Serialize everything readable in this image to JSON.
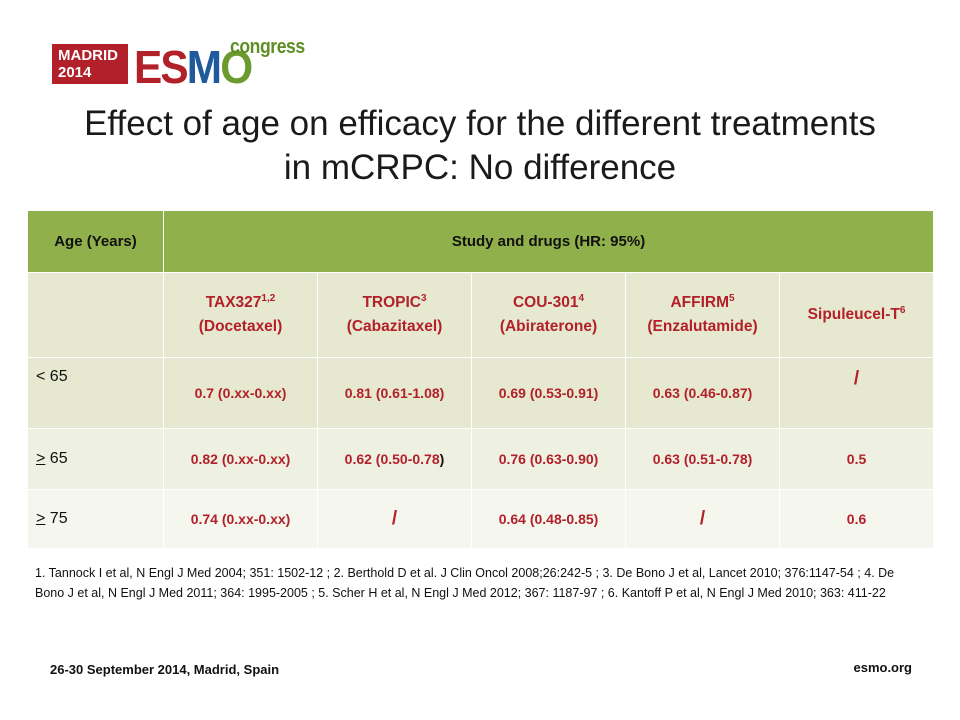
{
  "logo": {
    "city_line1": "MADRID",
    "city_line2": "2014",
    "brand_e": "E",
    "brand_s": "S",
    "brand_m": "M",
    "brand_o": "O",
    "congress": "congress"
  },
  "title": {
    "line1": "Effect of age on efficacy for the different treatments",
    "line2": "in mCRPC: No difference"
  },
  "table": {
    "header_age": "Age (Years)",
    "header_study": "Study and drugs (HR: 95%)",
    "drugs": [
      {
        "name": "TAX327",
        "sup": "1,2",
        "drug": "(Docetaxel)"
      },
      {
        "name": "TROPIC",
        "sup": "3",
        "drug": "(Cabazitaxel)"
      },
      {
        "name": "COU-301",
        "sup": "4",
        "drug": "(Abiraterone)"
      },
      {
        "name": "AFFIRM",
        "sup": "5",
        "drug": "(Enzalutamide)"
      },
      {
        "name": "Sipuleucel-T",
        "sup": "6",
        "drug": ""
      }
    ],
    "rows": [
      {
        "age_prefix": "<",
        "age_value": " 65",
        "values": [
          "0.7 (0.xx-0.xx)",
          "0.81 (0.61-1.08)",
          "0.69 (0.53-0.91)",
          "0.63 (0.46-0.87)",
          "/"
        ]
      },
      {
        "age_prefix": ">",
        "age_value": " 65",
        "values": [
          "0.82 (0.xx-0.xx)",
          "0.62 (0.50-0.78",
          "0.76 (0.63-0.90)",
          "0.63 (0.51-0.78)",
          "0.5"
        ],
        "value_suffix": ")"
      },
      {
        "age_prefix": ">",
        "age_value": " 75",
        "values": [
          "0.74 (0.xx-0.xx)",
          "/",
          "0.64 (0.48-0.85)",
          "/",
          "0.6"
        ]
      }
    ]
  },
  "references": "1. Tannock I et al, N Engl J Med 2004; 351: 1502-12 ; 2. Berthold D et al. J Clin Oncol 2008;26:242-5 ;  3. De Bono J et al, Lancet 2010; 376:1147-54 ; 4. De Bono J et al, N Engl J Med 2011; 364: 1995-2005 ;  5. Scher H et al, N Engl J Med 2012; 367: 1187-97 ;  6. Kantoff P et al, N Engl J Med 2010; 363: 411-22",
  "footer": {
    "date_location": "26-30 September 2014, Madrid, Spain",
    "website": "esmo.org"
  },
  "colors": {
    "brand_red": "#b2202a",
    "header_green": "#8fb04a",
    "row_tint": "#e6e9cf"
  }
}
